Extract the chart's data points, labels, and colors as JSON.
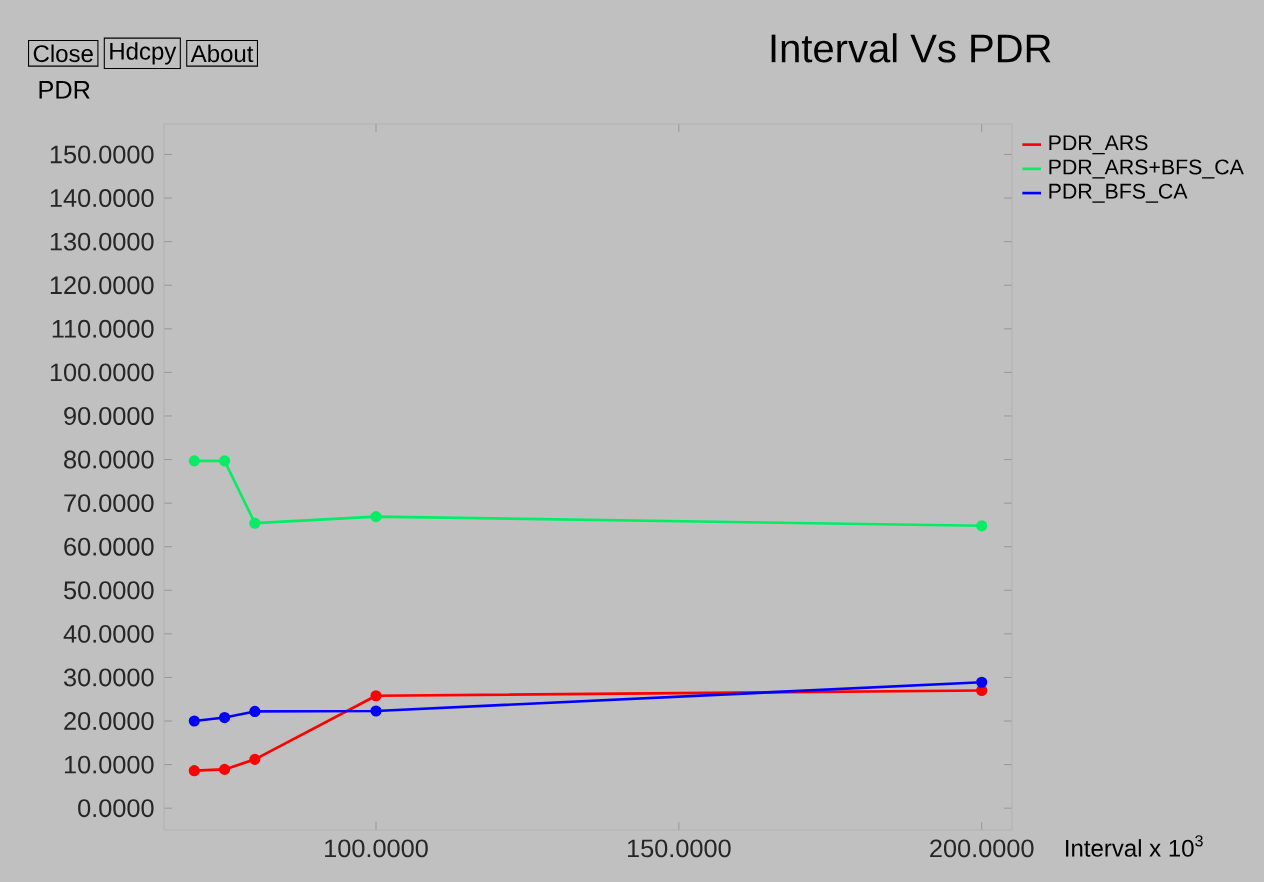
{
  "chart_data": {
    "type": "line",
    "title": "Interval Vs PDR",
    "xlabel": "Interval x 10$^{3}$",
    "ylabel": "PDR",
    "annotations": [
      "Close",
      "Hdcpy",
      "About"
    ],
    "x": [
      70,
      75,
      80,
      100,
      200
    ],
    "series": [
      {
        "name": "PDR_ARS",
        "color": "#ff0000",
        "values": [
          8.6,
          8.9,
          11.2,
          25.8,
          27.0
        ]
      },
      {
        "name": "PDR_ARS+BFS_CA",
        "color": "#00ee66",
        "values": [
          79.7,
          79.7,
          65.4,
          66.9,
          64.8
        ]
      },
      {
        "name": "PDR_BFS_CA",
        "color": "#0000ff",
        "values": [
          20.0,
          20.8,
          22.2,
          22.3,
          28.9
        ]
      }
    ],
    "xlim": [
      65,
      205
    ],
    "ylim": [
      -5,
      157
    ],
    "xticks": [
      {
        "value": 100,
        "label": "100.0000"
      },
      {
        "value": 150,
        "label": "150.0000"
      },
      {
        "value": 200,
        "label": "200.0000"
      }
    ],
    "yticks": [
      {
        "value": 0,
        "label": "0.0000"
      },
      {
        "value": 10,
        "label": "10.0000"
      },
      {
        "value": 20,
        "label": "20.0000"
      },
      {
        "value": 30,
        "label": "30.0000"
      },
      {
        "value": 40,
        "label": "40.0000"
      },
      {
        "value": 50,
        "label": "50.0000"
      },
      {
        "value": 60,
        "label": "60.0000"
      },
      {
        "value": 70,
        "label": "70.0000"
      },
      {
        "value": 80,
        "label": "80.0000"
      },
      {
        "value": 90,
        "label": "90.0000"
      },
      {
        "value": 100,
        "label": "100.0000"
      },
      {
        "value": 110,
        "label": "110.0000"
      },
      {
        "value": 120,
        "label": "120.0000"
      },
      {
        "value": 130,
        "label": "130.0000"
      },
      {
        "value": 140,
        "label": "140.0000"
      },
      {
        "value": 150,
        "label": "150.0000"
      }
    ],
    "legend": "top right",
    "marker": "circle",
    "line_style": "solid"
  }
}
